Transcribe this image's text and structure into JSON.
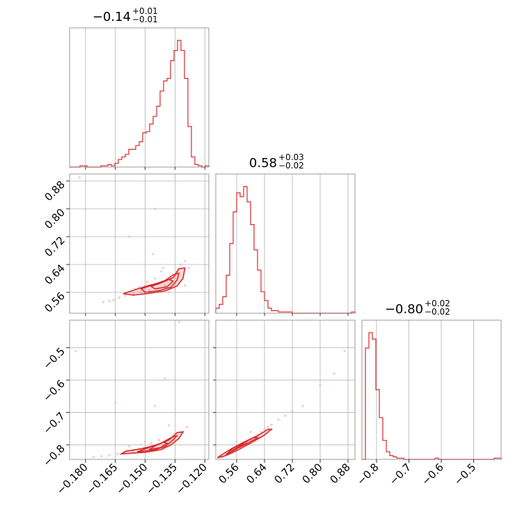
{
  "chart_data": {
    "type": "corner",
    "color": "#d62728",
    "titles": [
      {
        "value": "−0.14",
        "plus": "+0.01",
        "minus": "−0.01"
      },
      {
        "value": "0.58",
        "plus": "+0.03",
        "minus": "−0.02"
      },
      {
        "value": "−0.80",
        "plus": "+0.02",
        "minus": "−0.02"
      }
    ],
    "params": [
      {
        "range": [
          -0.188,
          -0.118
        ],
        "ticks": [
          -0.18,
          -0.165,
          -0.15,
          -0.135,
          -0.12
        ],
        "ticklabels": [
          "−0.180",
          "−0.165",
          "−0.150",
          "−0.135",
          "−0.120"
        ]
      },
      {
        "range": [
          0.5,
          0.9
        ],
        "ticks": [
          0.56,
          0.64,
          0.72,
          0.8,
          0.88
        ],
        "ticklabels": [
          "0.56",
          "0.64",
          "0.72",
          "0.80",
          "0.88"
        ]
      },
      {
        "range": [
          -0.845,
          -0.415
        ],
        "ticks": [
          -0.8,
          -0.7,
          -0.6,
          -0.5
        ],
        "ticklabels": [
          "−0.8",
          "−0.7",
          "−0.6",
          "−0.5"
        ]
      }
    ],
    "histograms": [
      {
        "counts": [
          0,
          0,
          0,
          1,
          1,
          0,
          0,
          0,
          0,
          1,
          1,
          2,
          1,
          3,
          6,
          8,
          10,
          14,
          14,
          17,
          20,
          27,
          28,
          34,
          40,
          48,
          60,
          68,
          70,
          84,
          92,
          100,
          92,
          70,
          32,
          8,
          2,
          1,
          0,
          1
        ]
      },
      {
        "counts": [
          4,
          7,
          13,
          30,
          55,
          80,
          95,
          92,
          100,
          88,
          70,
          50,
          34,
          17,
          10,
          4,
          2,
          2,
          1,
          1,
          1,
          1,
          0,
          0,
          0,
          0,
          0,
          0,
          0,
          0,
          0,
          0,
          0,
          0,
          0,
          0,
          0,
          0,
          0,
          1
        ]
      },
      {
        "counts": [
          0,
          88,
          100,
          95,
          55,
          33,
          15,
          6,
          3,
          2,
          1,
          1,
          0,
          0,
          0,
          0,
          0,
          0,
          0,
          0,
          0,
          1,
          0,
          0,
          0,
          0,
          0,
          0,
          0,
          0,
          0,
          0,
          0,
          0,
          0,
          0,
          0,
          0,
          1,
          1
        ]
      }
    ],
    "points_scatter_01": [
      [
        -0.16,
        0.55
      ],
      [
        -0.163,
        0.545
      ],
      [
        -0.166,
        0.538
      ],
      [
        -0.168,
        0.535
      ],
      [
        -0.171,
        0.532
      ],
      [
        -0.156,
        0.555
      ],
      [
        -0.152,
        0.56
      ],
      [
        -0.148,
        0.565
      ],
      [
        -0.144,
        0.57
      ],
      [
        -0.14,
        0.58
      ],
      [
        -0.137,
        0.6
      ],
      [
        -0.134,
        0.62
      ],
      [
        -0.132,
        0.64
      ],
      [
        -0.13,
        0.65
      ],
      [
        -0.142,
        0.62
      ],
      [
        -0.145,
        0.6
      ],
      [
        -0.15,
        0.58
      ],
      [
        -0.158,
        0.72
      ],
      [
        -0.145,
        0.8
      ],
      [
        -0.13,
        0.58
      ],
      [
        -0.135,
        0.57
      ],
      [
        -0.138,
        0.56
      ],
      [
        -0.128,
        0.63
      ],
      [
        -0.146,
        0.67
      ],
      [
        -0.155,
        0.57
      ],
      [
        -0.183,
        0.89
      ],
      [
        -0.135,
        0.61
      ],
      [
        -0.141,
        0.63
      ],
      [
        -0.149,
        0.59
      ],
      [
        -0.153,
        0.575
      ]
    ],
    "points_scatter_02": [
      [
        -0.176,
        -0.838
      ],
      [
        -0.172,
        -0.835
      ],
      [
        -0.168,
        -0.832
      ],
      [
        -0.164,
        -0.828
      ],
      [
        -0.16,
        -0.825
      ],
      [
        -0.156,
        -0.82
      ],
      [
        -0.152,
        -0.815
      ],
      [
        -0.148,
        -0.81
      ],
      [
        -0.144,
        -0.8
      ],
      [
        -0.14,
        -0.79
      ],
      [
        -0.137,
        -0.78
      ],
      [
        -0.134,
        -0.77
      ],
      [
        -0.131,
        -0.76
      ],
      [
        -0.129,
        -0.745
      ],
      [
        -0.145,
        -0.68
      ],
      [
        -0.165,
        -0.67
      ],
      [
        -0.14,
        -0.595
      ],
      [
        -0.133,
        -0.42
      ],
      [
        -0.138,
        -0.74
      ],
      [
        -0.15,
        -0.79
      ],
      [
        -0.158,
        -0.805
      ],
      [
        -0.185,
        -0.51
      ],
      [
        -0.143,
        -0.785
      ],
      [
        -0.147,
        -0.795
      ]
    ],
    "points_scatter_12": [
      [
        0.52,
        -0.838
      ],
      [
        0.53,
        -0.83
      ],
      [
        0.54,
        -0.825
      ],
      [
        0.55,
        -0.818
      ],
      [
        0.56,
        -0.81
      ],
      [
        0.57,
        -0.8
      ],
      [
        0.58,
        -0.795
      ],
      [
        0.59,
        -0.79
      ],
      [
        0.6,
        -0.783
      ],
      [
        0.61,
        -0.776
      ],
      [
        0.62,
        -0.768
      ],
      [
        0.63,
        -0.76
      ],
      [
        0.64,
        -0.752
      ],
      [
        0.65,
        -0.745
      ],
      [
        0.66,
        -0.738
      ],
      [
        0.68,
        -0.722
      ],
      [
        0.7,
        -0.71
      ],
      [
        0.72,
        -0.697
      ],
      [
        0.75,
        -0.68
      ],
      [
        0.8,
        -0.615
      ],
      [
        0.84,
        -0.58
      ],
      [
        0.87,
        -0.51
      ],
      [
        0.56,
        -0.79
      ],
      [
        0.6,
        -0.76
      ]
    ]
  }
}
